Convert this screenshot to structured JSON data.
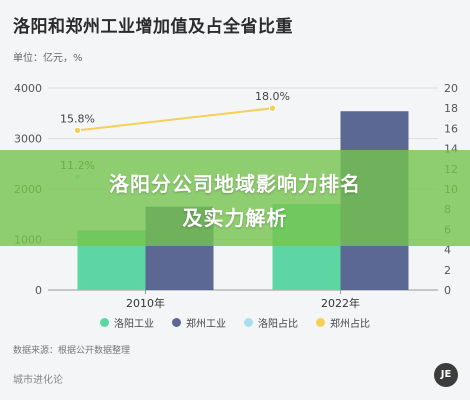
{
  "title": "洛阳和郑州工业增加值及占全省比重",
  "unit_label": "单位：亿元，%",
  "source": "数据来源：根据公开数据整理",
  "brand": "城市进化论",
  "logo_text": "JE",
  "banner": {
    "line1": "洛阳分公司地域影响力排名",
    "line2": "及实力解析"
  },
  "legend": [
    {
      "label": "洛阳工业",
      "color": "#5dd6a3"
    },
    {
      "label": "郑州工业",
      "color": "#5b6893"
    },
    {
      "label": "洛阳占比",
      "color": "#a9def0"
    },
    {
      "label": "郑州占比",
      "color": "#f6d055"
    }
  ],
  "chart_data": {
    "type": "bar",
    "categories": [
      "2010年",
      "2022年"
    ],
    "series": [
      {
        "name": "洛阳工业",
        "kind": "bar",
        "axis": "left",
        "values": [
          1180,
          1700
        ],
        "color": "#5dd6a3"
      },
      {
        "name": "郑州工业",
        "kind": "bar",
        "axis": "left",
        "values": [
          1650,
          3540
        ],
        "color": "#5b6893"
      },
      {
        "name": "洛阳占比",
        "kind": "line",
        "axis": "right",
        "values": [
          11.2,
          null
        ],
        "labels": [
          "11.2%",
          ""
        ],
        "color": "#a9def0"
      },
      {
        "name": "郑州占比",
        "kind": "line",
        "axis": "right",
        "values": [
          15.8,
          18.0
        ],
        "labels": [
          "15.8%",
          "18.0%"
        ],
        "color": "#f6d055"
      }
    ],
    "y_left": {
      "min": 0,
      "max": 4000,
      "ticks": [
        0,
        1000,
        2000,
        3000,
        4000
      ]
    },
    "y_right": {
      "min": 0,
      "max": 20,
      "ticks": [
        0,
        2,
        4,
        6,
        8,
        10,
        12,
        14,
        16,
        18,
        20
      ]
    },
    "grid": true,
    "legend_position": "bottom"
  }
}
